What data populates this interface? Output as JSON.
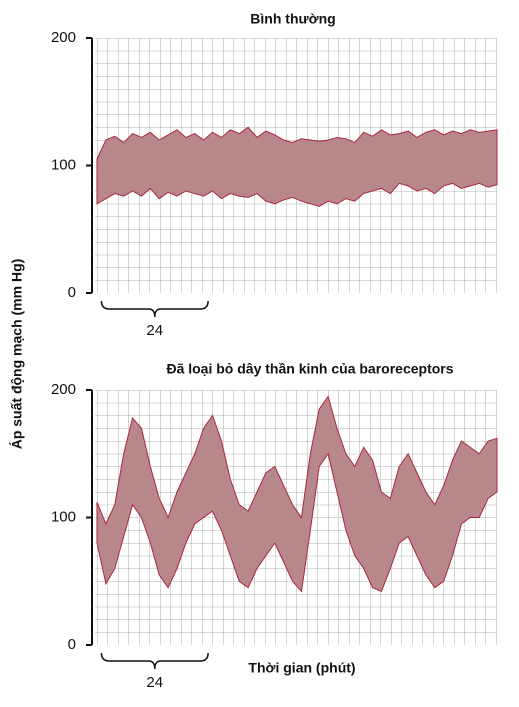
{
  "chart_data": [
    {
      "type": "range-area",
      "title": "Bình thường",
      "ylabel": "Áp suất động mạch (mm Hg)",
      "ylim": [
        0,
        200
      ],
      "yticks": [
        0,
        100,
        200
      ],
      "xlim": [
        0,
        90
      ],
      "grid": true,
      "color": "#b8878b",
      "edge_color": "#a8283c",
      "x": [
        0,
        2,
        4,
        6,
        8,
        10,
        12,
        14,
        16,
        18,
        20,
        22,
        24,
        26,
        28,
        30,
        32,
        34,
        36,
        38,
        40,
        42,
        44,
        46,
        48,
        50,
        52,
        54,
        56,
        58,
        60,
        62,
        64,
        66,
        68,
        70,
        72,
        74,
        76,
        78,
        80,
        82,
        84,
        86,
        88,
        90
      ],
      "high": [
        105,
        120,
        123,
        118,
        125,
        122,
        126,
        120,
        124,
        128,
        122,
        125,
        120,
        126,
        122,
        128,
        125,
        130,
        122,
        127,
        124,
        120,
        118,
        121,
        120,
        119,
        120,
        122,
        121,
        118,
        126,
        123,
        128,
        124,
        125,
        127,
        122,
        126,
        128,
        124,
        127,
        125,
        128,
        126,
        127,
        128
      ],
      "low": [
        70,
        74,
        78,
        76,
        80,
        76,
        82,
        74,
        79,
        76,
        80,
        78,
        76,
        80,
        74,
        78,
        76,
        75,
        78,
        72,
        70,
        73,
        75,
        72,
        70,
        68,
        72,
        70,
        74,
        72,
        78,
        80,
        82,
        78,
        86,
        84,
        80,
        82,
        78,
        84,
        86,
        82,
        84,
        86,
        83,
        85
      ],
      "brace": {
        "label": "24",
        "x": [
          1,
          25
        ]
      }
    },
    {
      "type": "range-area",
      "title": "Đã loại bỏ dây thần kinh của baroreceptors",
      "xlabel": "Thời gian (phút)",
      "ylim": [
        0,
        200
      ],
      "yticks": [
        0,
        100,
        200
      ],
      "xlim": [
        0,
        90
      ],
      "grid": true,
      "color": "#b8878b",
      "edge_color": "#a8283c",
      "x": [
        0,
        2,
        4,
        6,
        8,
        10,
        12,
        14,
        16,
        18,
        20,
        22,
        24,
        26,
        28,
        30,
        32,
        34,
        36,
        38,
        40,
        42,
        44,
        46,
        48,
        50,
        52,
        54,
        56,
        58,
        60,
        62,
        64,
        66,
        68,
        70,
        72,
        74,
        76,
        78,
        80,
        82,
        84,
        86,
        88,
        90
      ],
      "high": [
        112,
        95,
        110,
        150,
        178,
        170,
        140,
        115,
        100,
        120,
        135,
        150,
        170,
        180,
        160,
        130,
        110,
        105,
        120,
        135,
        140,
        125,
        110,
        100,
        150,
        185,
        195,
        170,
        150,
        140,
        155,
        145,
        120,
        115,
        140,
        150,
        135,
        120,
        110,
        125,
        145,
        160,
        155,
        150,
        160,
        162
      ],
      "low": [
        80,
        48,
        60,
        85,
        110,
        100,
        80,
        55,
        45,
        60,
        80,
        95,
        100,
        105,
        90,
        70,
        50,
        45,
        60,
        70,
        80,
        65,
        50,
        42,
        90,
        140,
        150,
        120,
        90,
        70,
        60,
        45,
        42,
        60,
        80,
        85,
        70,
        55,
        45,
        50,
        70,
        95,
        100,
        100,
        115,
        120
      ],
      "brace": {
        "label": "24",
        "x": [
          1,
          25
        ]
      }
    }
  ]
}
